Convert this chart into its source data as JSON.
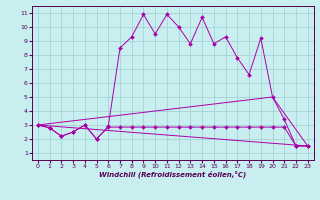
{
  "xlabel": "Windchill (Refroidissement éolien,°C)",
  "background_color": "#c8eef0",
  "line_color": "#aa00aa",
  "xlim": [
    -0.5,
    23.5
  ],
  "ylim": [
    0.5,
    11.5
  ],
  "xticks": [
    0,
    1,
    2,
    3,
    4,
    5,
    6,
    7,
    8,
    9,
    10,
    11,
    12,
    13,
    14,
    15,
    16,
    17,
    18,
    19,
    20,
    21,
    22,
    23
  ],
  "yticks": [
    1,
    2,
    3,
    4,
    5,
    6,
    7,
    8,
    9,
    10,
    11
  ],
  "series1_x": [
    0,
    1,
    2,
    3,
    4,
    5,
    6,
    7,
    8,
    9,
    10,
    11,
    12,
    13,
    14,
    15,
    16,
    17,
    18,
    19,
    20,
    21,
    22,
    23
  ],
  "series1_y": [
    3.0,
    2.8,
    2.2,
    2.5,
    3.0,
    2.0,
    2.9,
    8.5,
    9.3,
    10.9,
    9.5,
    10.9,
    10.0,
    8.8,
    10.7,
    8.8,
    9.3,
    7.8,
    6.6,
    9.2,
    5.0,
    3.4,
    1.5,
    1.5
  ],
  "series2_x": [
    0,
    1,
    2,
    3,
    4,
    5,
    6,
    7,
    8,
    9,
    10,
    11,
    12,
    13,
    14,
    15,
    16,
    17,
    18,
    19,
    20,
    21,
    22,
    23
  ],
  "series2_y": [
    3.0,
    2.8,
    2.2,
    2.5,
    3.0,
    2.0,
    2.85,
    2.85,
    2.85,
    2.85,
    2.85,
    2.85,
    2.85,
    2.85,
    2.85,
    2.85,
    2.85,
    2.85,
    2.85,
    2.85,
    2.85,
    2.85,
    1.5,
    1.5
  ],
  "series3_x": [
    0,
    23
  ],
  "series3_y": [
    3.0,
    1.5
  ],
  "series4_x": [
    0,
    20,
    23
  ],
  "series4_y": [
    3.0,
    5.0,
    1.5
  ],
  "tick_fontsize": 4.5,
  "xlabel_fontsize": 5.0
}
